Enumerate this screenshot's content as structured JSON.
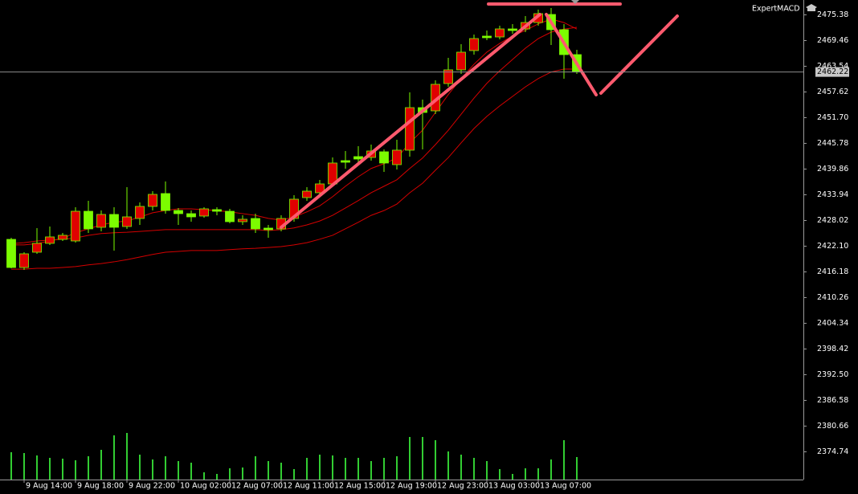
{
  "chart_data": {
    "type": "candlestick",
    "expert": "ExpertMACD",
    "categories": [
      null,
      "9 Aug 14:00",
      null,
      null,
      null,
      "9 Aug 18:00",
      null,
      null,
      null,
      "9 Aug 22:00",
      null,
      null,
      null,
      "10 Aug 02:00",
      null,
      null,
      null,
      "12 Aug 07:00",
      null,
      null,
      null,
      "12 Aug 11:00",
      null,
      null,
      null,
      "12 Aug 15:00",
      null,
      null,
      null,
      "12 Aug 19:00",
      null,
      null,
      null,
      "12 Aug 23:00",
      null,
      null,
      null,
      "13 Aug 03:00",
      null,
      null,
      null,
      "13 Aug 07:00",
      null,
      null,
      null
    ],
    "open": [
      2423.67,
      2417.19,
      2420.71,
      2422.75,
      2423.67,
      2423.3,
      2430.14,
      2426.45,
      2429.41,
      2426.63,
      2428.48,
      2431.26,
      2434.22,
      2430.33,
      2429.59,
      2429.04,
      2430.52,
      2430.14,
      2427.74,
      2428.48,
      2426.26,
      2426.08,
      2428.48,
      2433.29,
      2434.4,
      2436.44,
      2441.8,
      2442.73,
      2442.54,
      2443.84,
      2440.88,
      2444.21,
      2454.01,
      2453.27,
      2459.56,
      2462.71,
      2467.15,
      2470.48,
      2470.29,
      2472.14,
      2472.14,
      2473.62,
      2475.47,
      2471.96,
      2466.22
    ],
    "high": [
      2424.04,
      2420.71,
      2426.26,
      2426.63,
      2425.15,
      2431.07,
      2432.55,
      2430.33,
      2431.07,
      2435.7,
      2432.18,
      2434.77,
      2437.01,
      2430.89,
      2430.33,
      2431.07,
      2431.07,
      2430.7,
      2429.22,
      2429.59,
      2427.0,
      2429.22,
      2433.85,
      2435.7,
      2437.36,
      2442.54,
      2444.02,
      2445.13,
      2445.5,
      2444.39,
      2446.61,
      2457.53,
      2455.86,
      2460.3,
      2465.48,
      2468.63,
      2470.85,
      2471.77,
      2472.88,
      2473.25,
      2475.1,
      2476.58,
      2476.95,
      2473.25,
      2467.33
    ],
    "low": [
      2417.01,
      2416.64,
      2420.34,
      2422.38,
      2423.3,
      2422.93,
      2425.15,
      2425.52,
      2421.08,
      2426.08,
      2427.0,
      2430.33,
      2429.59,
      2427.0,
      2427.74,
      2428.67,
      2429.22,
      2427.37,
      2427.0,
      2425.15,
      2424.04,
      2425.52,
      2427.74,
      2432.55,
      2434.03,
      2435.88,
      2439.95,
      2441.06,
      2441.8,
      2439.21,
      2439.77,
      2442.73,
      2444.39,
      2452.53,
      2458.82,
      2461.78,
      2466.22,
      2469.55,
      2469.74,
      2471.03,
      2471.4,
      2472.88,
      2468.44,
      2460.67,
      2461.78
    ],
    "close": [
      2417.19,
      2420.34,
      2422.75,
      2424.23,
      2424.6,
      2430.14,
      2426.08,
      2429.41,
      2426.45,
      2428.85,
      2431.26,
      2434.03,
      2430.33,
      2429.59,
      2428.85,
      2430.7,
      2430.14,
      2427.74,
      2428.3,
      2426.08,
      2425.89,
      2428.48,
      2432.92,
      2434.77,
      2436.44,
      2441.25,
      2441.43,
      2442.17,
      2444.02,
      2441.25,
      2444.21,
      2454.01,
      2452.9,
      2459.38,
      2462.71,
      2466.78,
      2469.92,
      2470.11,
      2472.14,
      2471.77,
      2473.62,
      2475.66,
      2471.96,
      2466.22,
      2462.22
    ],
    "volume": [
      34,
      33,
      30,
      27,
      26,
      24,
      29,
      37,
      55,
      58,
      31,
      25,
      29,
      23,
      21,
      9,
      7,
      14,
      15,
      29,
      23,
      21,
      13,
      27,
      31,
      30,
      27,
      27,
      23,
      27,
      29,
      53,
      53,
      49,
      35,
      31,
      27,
      23,
      13,
      7,
      14,
      14,
      25,
      49,
      28
    ],
    "ma": [
      {
        "color": "#d40000",
        "values": [
          2422.4,
          2422.4,
          2422.7,
          2423.3,
          2423.9,
          2425.2,
          2426.1,
          2427.0,
          2427.6,
          2427.9,
          2428.8,
          2429.8,
          2430.3,
          2430.7,
          2430.7,
          2430.5,
          2430.3,
          2430.0,
          2429.6,
          2429.2,
          2428.5,
          2428.1,
          2428.8,
          2430.0,
          2431.4,
          2433.5,
          2435.9,
          2438.1,
          2440.0,
          2441.1,
          2442.4,
          2445.9,
          2448.8,
          2452.9,
          2457.0,
          2460.7,
          2464.0,
          2466.8,
          2468.8,
          2470.5,
          2471.8,
          2473.3,
          2474.4,
          2473.6,
          2472.1
        ]
      },
      {
        "color": "#d40000",
        "values": [
          2422.7,
          2422.9,
          2423.3,
          2423.5,
          2423.7,
          2424.0,
          2424.6,
          2425.0,
          2425.2,
          2425.3,
          2425.5,
          2425.7,
          2425.9,
          2425.9,
          2425.9,
          2425.9,
          2425.9,
          2425.9,
          2425.9,
          2425.9,
          2425.7,
          2425.9,
          2426.3,
          2427.0,
          2427.9,
          2429.2,
          2430.9,
          2432.6,
          2434.4,
          2435.9,
          2437.4,
          2440.0,
          2442.4,
          2445.5,
          2448.8,
          2452.5,
          2456.2,
          2459.6,
          2462.5,
          2465.1,
          2467.7,
          2469.9,
          2471.4,
          2472.1,
          2472.5
        ]
      },
      {
        "color": "#d40000",
        "values": [
          2416.8,
          2416.8,
          2417.0,
          2417.0,
          2417.2,
          2417.4,
          2417.8,
          2418.1,
          2418.5,
          2419.0,
          2419.6,
          2420.2,
          2420.7,
          2420.9,
          2421.1,
          2421.1,
          2421.1,
          2421.3,
          2421.5,
          2421.6,
          2421.8,
          2422.0,
          2422.4,
          2422.9,
          2423.7,
          2424.6,
          2426.1,
          2427.6,
          2429.2,
          2430.3,
          2431.8,
          2434.4,
          2436.6,
          2439.6,
          2442.5,
          2445.9,
          2449.2,
          2452.0,
          2454.4,
          2456.6,
          2458.8,
          2460.7,
          2462.2,
          2462.9,
          2462.9
        ]
      }
    ],
    "up_color": "#e00000",
    "down_color": "#7cfc00",
    "wick_color": "#7cfc00",
    "volume_color": "#32cd32",
    "current_price": 2462.22,
    "ylim": [
      2368.35,
      2478.8
    ],
    "yticks": [
      2475.38,
      2469.46,
      2463.54,
      2457.62,
      {
        "value": 2451.7,
        "label": "2451.70"
      },
      2445.78,
      2439.86,
      2433.94,
      2428.02,
      {
        "value": 2422.1,
        "label": "2422.10"
      },
      2416.18,
      2410.26,
      2404.34,
      2398.42,
      {
        "value": 2392.5,
        "label": "2392.50"
      },
      2386.58,
      2380.66,
      2374.74
    ]
  }
}
